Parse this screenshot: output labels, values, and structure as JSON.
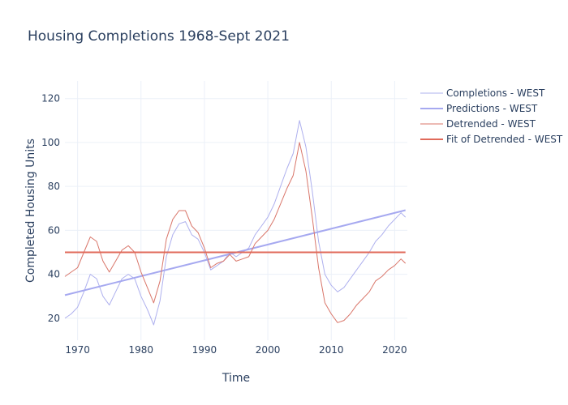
{
  "chart_data": {
    "type": "line",
    "title": "Housing Completions 1968-Sept 2021",
    "xlabel": "Time",
    "ylabel": "Completed Housing Units",
    "xlim": [
      1968,
      2022
    ],
    "ylim": [
      10,
      128
    ],
    "x_ticks": [
      "1970",
      "1980",
      "1990",
      "2000",
      "2010",
      "2020"
    ],
    "y_ticks": [
      "20",
      "40",
      "60",
      "80",
      "100",
      "120"
    ],
    "grid": true,
    "legend_position": "top-right",
    "colors": {
      "completions": "#aeb0ee",
      "predictions": "#a6a9f0",
      "detrended": "#d9766a",
      "fit": "#e06a5a"
    },
    "series": [
      {
        "name": "Completions - WEST",
        "style": "thin",
        "x": [
          1968.0,
          1969.0,
          1970.0,
          1971.0,
          1972.0,
          1973.0,
          1974.0,
          1975.0,
          1976.0,
          1977.0,
          1978.0,
          1979.0,
          1980.0,
          1981.0,
          1982.0,
          1983.0,
          1984.0,
          1985.0,
          1986.0,
          1987.0,
          1988.0,
          1989.0,
          1990.0,
          1991.0,
          1992.0,
          1993.0,
          1994.0,
          1995.0,
          1996.0,
          1997.0,
          1998.0,
          1999.0,
          2000.0,
          2001.0,
          2002.0,
          2003.0,
          2004.0,
          2005.0,
          2006.0,
          2007.0,
          2008.0,
          2009.0,
          2010.0,
          2011.0,
          2012.0,
          2013.0,
          2014.0,
          2015.0,
          2016.0,
          2017.0,
          2018.0,
          2019.0,
          2020.0,
          2021.0,
          2021.7
        ],
        "y": [
          20,
          22,
          25,
          32,
          40,
          38,
          30,
          26,
          32,
          38,
          40,
          38,
          30,
          24,
          17,
          28,
          48,
          58,
          63,
          64,
          58,
          56,
          50,
          42,
          44,
          46,
          50,
          48,
          50,
          52,
          58,
          62,
          66,
          72,
          80,
          88,
          95,
          110,
          98,
          78,
          55,
          40,
          35,
          32,
          34,
          38,
          42,
          46,
          50,
          55,
          58,
          62,
          65,
          68,
          66
        ]
      },
      {
        "name": "Predictions - WEST",
        "style": "thick",
        "x": [
          1968.0,
          2021.7
        ],
        "y": [
          30.5,
          69.2
        ]
      },
      {
        "name": "Detrended - WEST",
        "style": "thin",
        "x": [
          1968.0,
          1969.0,
          1970.0,
          1971.0,
          1972.0,
          1973.0,
          1974.0,
          1975.0,
          1976.0,
          1977.0,
          1978.0,
          1979.0,
          1980.0,
          1981.0,
          1982.0,
          1983.0,
          1984.0,
          1985.0,
          1986.0,
          1987.0,
          1988.0,
          1989.0,
          1990.0,
          1991.0,
          1992.0,
          1993.0,
          1994.0,
          1995.0,
          1996.0,
          1997.0,
          1998.0,
          1999.0,
          2000.0,
          2001.0,
          2002.0,
          2003.0,
          2004.0,
          2005.0,
          2006.0,
          2007.0,
          2008.0,
          2009.0,
          2010.0,
          2011.0,
          2012.0,
          2013.0,
          2014.0,
          2015.0,
          2016.0,
          2017.0,
          2018.0,
          2019.0,
          2020.0,
          2021.0,
          2021.7
        ],
        "y": [
          39,
          41,
          43,
          50,
          57,
          55,
          46,
          41,
          46,
          51,
          53,
          50,
          41,
          34,
          27,
          37,
          56,
          65,
          69,
          69,
          62,
          59,
          52,
          43,
          45,
          46,
          49,
          46,
          47,
          48,
          54,
          57,
          60,
          65,
          72,
          79,
          85,
          100,
          87,
          66,
          43,
          27,
          22,
          18,
          19,
          22,
          26,
          29,
          32,
          37,
          39,
          42,
          44,
          47,
          45
        ]
      },
      {
        "name": "Fit of Detrended - WEST",
        "style": "thick",
        "x": [
          1968.0,
          2021.7
        ],
        "y": [
          50,
          50
        ]
      }
    ]
  }
}
